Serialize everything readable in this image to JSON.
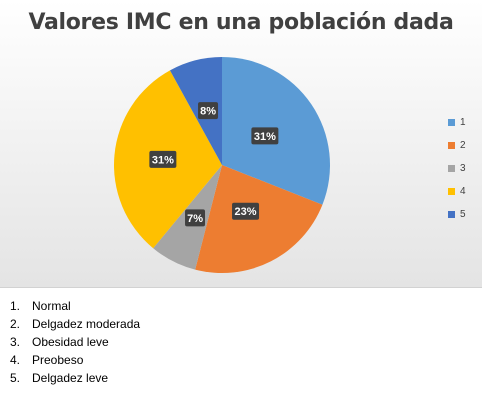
{
  "chart_data": {
    "type": "pie",
    "title": "Valores IMC en una población dada",
    "categories": [
      "1",
      "2",
      "3",
      "4",
      "5"
    ],
    "values": [
      31,
      23,
      7,
      31,
      8
    ],
    "value_labels": [
      "31%",
      "23%",
      "7%",
      "31%",
      "8%"
    ],
    "colors": [
      "#5b9bd5",
      "#ed7d31",
      "#a5a5a5",
      "#ffc000",
      "#4472c4"
    ],
    "legend_position": "right"
  },
  "notes": [
    {
      "number": "1.",
      "text": "Normal"
    },
    {
      "number": "2.",
      "text": "Delgadez moderada"
    },
    {
      "number": "3.",
      "text": "Obesidad leve"
    },
    {
      "number": "4.",
      "text": "Preobeso"
    },
    {
      "number": "5.",
      "text": "Delgadez leve"
    }
  ]
}
